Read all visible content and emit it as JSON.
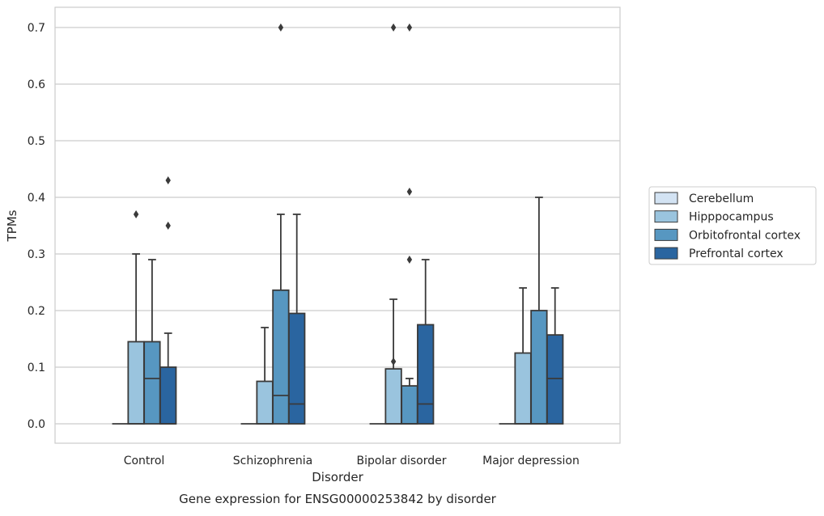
{
  "chart_data": {
    "type": "box",
    "title": "",
    "caption": "Gene expression for ENSG00000253842 by disorder",
    "xlabel": "Disorder",
    "ylabel": "TPMs",
    "ylim": [
      -0.035,
      0.735
    ],
    "yticks": [
      0.0,
      0.1,
      0.2,
      0.3,
      0.4,
      0.5,
      0.6,
      0.7
    ],
    "ytick_labels": [
      "0.0",
      "0.1",
      "0.2",
      "0.3",
      "0.4",
      "0.5",
      "0.6",
      "0.7"
    ],
    "categories": [
      "Control",
      "Schizophrenia",
      "Bipolar disorder",
      "Major depression"
    ],
    "grid": "horizontal",
    "legend_position": "right",
    "series": [
      {
        "name": "Cerebellum",
        "color": "#d3e3f3",
        "boxes": [
          {
            "whisker_low": 0.0,
            "q1": 0.0,
            "median": 0.0,
            "q3": 0.0,
            "whisker_high": 0.0,
            "outliers": []
          },
          {
            "whisker_low": 0.0,
            "q1": 0.0,
            "median": 0.0,
            "q3": 0.0,
            "whisker_high": 0.0,
            "outliers": []
          },
          {
            "whisker_low": 0.0,
            "q1": 0.0,
            "median": 0.0,
            "q3": 0.0,
            "whisker_high": 0.0,
            "outliers": []
          },
          {
            "whisker_low": 0.0,
            "q1": 0.0,
            "median": 0.0,
            "q3": 0.0,
            "whisker_high": 0.0,
            "outliers": []
          }
        ]
      },
      {
        "name": "Hipppocampus",
        "color": "#9ac4de",
        "boxes": [
          {
            "whisker_low": 0.0,
            "q1": 0.0,
            "median": 0.0,
            "q3": 0.145,
            "whisker_high": 0.3,
            "outliers": [
              0.37
            ]
          },
          {
            "whisker_low": 0.0,
            "q1": 0.0,
            "median": 0.0,
            "q3": 0.075,
            "whisker_high": 0.17,
            "outliers": []
          },
          {
            "whisker_low": 0.0,
            "q1": 0.0,
            "median": 0.0,
            "q3": 0.097,
            "whisker_high": 0.22,
            "outliers": [
              0.11,
              0.7
            ]
          },
          {
            "whisker_low": 0.0,
            "q1": 0.0,
            "median": 0.0,
            "q3": 0.125,
            "whisker_high": 0.24,
            "outliers": []
          }
        ]
      },
      {
        "name": "Orbitofrontal cortex",
        "color": "#5797c1",
        "boxes": [
          {
            "whisker_low": 0.0,
            "q1": 0.0,
            "median": 0.08,
            "q3": 0.145,
            "whisker_high": 0.29,
            "outliers": []
          },
          {
            "whisker_low": 0.0,
            "q1": 0.0,
            "median": 0.05,
            "q3": 0.236,
            "whisker_high": 0.37,
            "outliers": [
              0.7
            ]
          },
          {
            "whisker_low": 0.0,
            "q1": 0.0,
            "median": 0.0,
            "q3": 0.067,
            "whisker_high": 0.08,
            "outliers": [
              0.29,
              0.41,
              0.7
            ]
          },
          {
            "whisker_low": 0.0,
            "q1": 0.0,
            "median": 0.0,
            "q3": 0.2,
            "whisker_high": 0.4,
            "outliers": []
          }
        ]
      },
      {
        "name": "Prefrontal cortex",
        "color": "#2a65a0",
        "boxes": [
          {
            "whisker_low": 0.0,
            "q1": 0.0,
            "median": 0.0,
            "q3": 0.1,
            "whisker_high": 0.16,
            "outliers": [
              0.35,
              0.43
            ]
          },
          {
            "whisker_low": 0.0,
            "q1": 0.0,
            "median": 0.035,
            "q3": 0.195,
            "whisker_high": 0.37,
            "outliers": []
          },
          {
            "whisker_low": 0.0,
            "q1": 0.0,
            "median": 0.035,
            "q3": 0.175,
            "whisker_high": 0.29,
            "outliers": []
          },
          {
            "whisker_low": 0.0,
            "q1": 0.0,
            "median": 0.08,
            "q3": 0.157,
            "whisker_high": 0.24,
            "outliers": []
          }
        ]
      }
    ]
  }
}
